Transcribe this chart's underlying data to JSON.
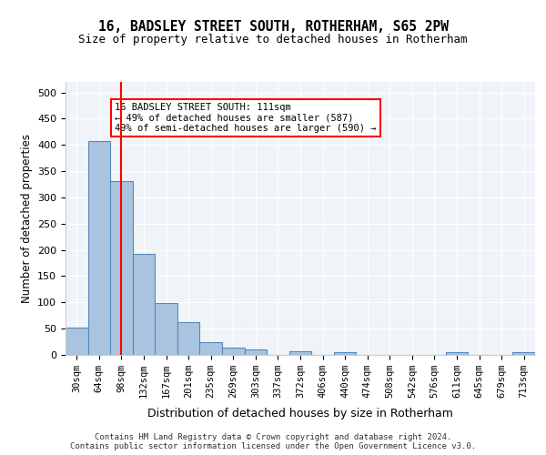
{
  "title1": "16, BADSLEY STREET SOUTH, ROTHERHAM, S65 2PW",
  "title2": "Size of property relative to detached houses in Rotherham",
  "xlabel": "Distribution of detached houses by size in Rotherham",
  "ylabel": "Number of detached properties",
  "bar_labels": [
    "30sqm",
    "64sqm",
    "98sqm",
    "132sqm",
    "167sqm",
    "201sqm",
    "235sqm",
    "269sqm",
    "303sqm",
    "337sqm",
    "372sqm",
    "406sqm",
    "440sqm",
    "474sqm",
    "508sqm",
    "542sqm",
    "576sqm",
    "611sqm",
    "645sqm",
    "679sqm",
    "713sqm"
  ],
  "bar_values": [
    52,
    407,
    331,
    192,
    99,
    63,
    24,
    14,
    10,
    0,
    7,
    0,
    5,
    0,
    0,
    0,
    0,
    5,
    0,
    0,
    5
  ],
  "bar_color": "#aac4e0",
  "bar_edgecolor": "#5588bb",
  "red_line_x": 2,
  "red_line_label": "16 BADSLEY STREET SOUTH: 111sqm",
  "annotation_line1": "16 BADSLEY STREET SOUTH: 111sqm",
  "annotation_line2": "← 49% of detached houses are smaller (587)",
  "annotation_line3": "49% of semi-detached houses are larger (590) →",
  "ylim": [
    0,
    520
  ],
  "yticks": [
    0,
    50,
    100,
    150,
    200,
    250,
    300,
    350,
    400,
    450,
    500
  ],
  "footer1": "Contains HM Land Registry data © Crown copyright and database right 2024.",
  "footer2": "Contains public sector information licensed under the Open Government Licence v3.0.",
  "background_color": "#f0f4f8"
}
